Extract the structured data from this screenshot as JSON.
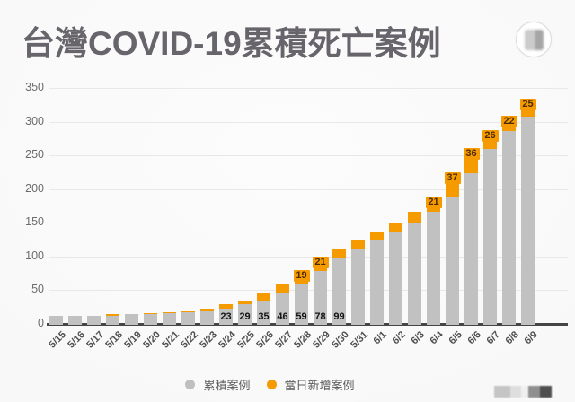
{
  "app": {
    "title": "台灣COVID-19累積死亡案例"
  },
  "legend": {
    "cumulative": "累積案例",
    "daily_new": "當日新增案例"
  },
  "colors": {
    "bar_gray": "#c1c1c1",
    "bar_orange": "#f59b00",
    "axis": "#454545",
    "grid": "#e9e8e8",
    "base_label_text": "#151515",
    "new_label_text": "#4c2a03",
    "background": "#f9f8f8"
  },
  "chart_data": {
    "type": "bar",
    "stacked": true,
    "title": "台灣COVID-19累積死亡案例",
    "xlabel": "",
    "ylabel": "",
    "grid": true,
    "legend_position": "bottom",
    "ylim": [
      0,
      350
    ],
    "yticks": [
      0,
      50,
      100,
      150,
      200,
      250,
      300,
      350
    ],
    "categories": [
      "5/15",
      "5/16",
      "5/17",
      "5/18",
      "5/19",
      "5/20",
      "5/21",
      "5/22",
      "5/23",
      "5/24",
      "5/25",
      "5/26",
      "5/27",
      "5/28",
      "5/29",
      "5/30",
      "5/31",
      "6/1",
      "6/2",
      "6/3",
      "6/4",
      "6/5",
      "6/6",
      "6/7",
      "6/8",
      "6/9"
    ],
    "series": [
      {
        "name": "累積案例",
        "color": "#c1c1c1",
        "values": [
          12,
          12,
          12,
          12,
          14,
          15,
          16,
          17,
          19,
          23,
          29,
          35,
          46,
          59,
          78,
          99,
          110,
          124,
          137,
          149,
          166,
          187,
          224,
          260,
          286,
          308
        ]
      },
      {
        "name": "當日新增案例",
        "color": "#f59b00",
        "values": [
          0,
          0,
          0,
          2,
          1,
          1,
          1,
          2,
          4,
          6,
          6,
          11,
          13,
          19,
          21,
          11,
          14,
          13,
          12,
          17,
          21,
          37,
          36,
          26,
          22,
          25
        ]
      }
    ],
    "totals": [
      12,
      12,
      12,
      14,
      15,
      16,
      17,
      19,
      23,
      29,
      35,
      46,
      59,
      78,
      99,
      110,
      124,
      137,
      149,
      166,
      187,
      224,
      260,
      286,
      308,
      333
    ],
    "bar_base_labels": {
      "5/24": 23,
      "5/25": 29,
      "5/26": 35,
      "5/27": 46,
      "5/28": 59,
      "5/29": 78,
      "5/30": 99
    },
    "bar_new_labels": {
      "5/28": 19,
      "5/29": 21,
      "6/4": 21,
      "6/5": 37,
      "6/6": 36,
      "6/7": 26,
      "6/8": 22,
      "6/9": 25
    }
  }
}
